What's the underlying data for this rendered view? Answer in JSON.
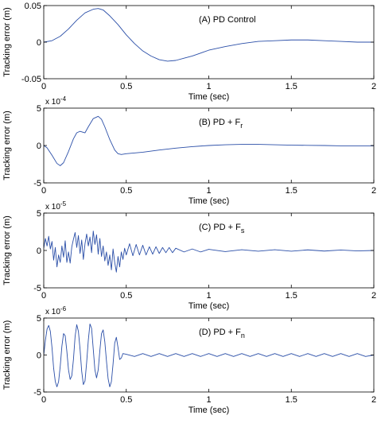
{
  "chart_data": [
    {
      "type": "line",
      "panel": "A",
      "title": "(A)  PD Control",
      "xlabel": "Time (sec)",
      "ylabel": "Tracking error (m)",
      "exponent": "",
      "xlim": [
        0,
        2
      ],
      "ylim": [
        -0.05,
        0.05
      ],
      "xticks": [
        0,
        0.5,
        1,
        1.5,
        2
      ],
      "xtick_labels": [
        "0",
        "0.5",
        "1",
        "1.5",
        "2"
      ],
      "yticks": [
        -0.05,
        0,
        0.05
      ],
      "ytick_labels": [
        "-0.05",
        "0",
        "0.05"
      ],
      "grid": false,
      "color": "#2b4fa8",
      "series": [
        {
          "x": [
            0,
            0.05,
            0.1,
            0.15,
            0.2,
            0.25,
            0.3,
            0.33,
            0.36,
            0.4,
            0.45,
            0.5,
            0.55,
            0.6,
            0.65,
            0.7,
            0.75,
            0.8,
            0.85,
            0.9,
            0.95,
            1.0,
            1.1,
            1.2,
            1.3,
            1.4,
            1.5,
            1.6,
            1.7,
            1.8,
            1.9,
            2.0
          ],
          "y": [
            0,
            0.002,
            0.008,
            0.018,
            0.03,
            0.04,
            0.045,
            0.046,
            0.044,
            0.036,
            0.024,
            0.01,
            -0.002,
            -0.012,
            -0.019,
            -0.024,
            -0.026,
            -0.025,
            -0.022,
            -0.019,
            -0.015,
            -0.011,
            -0.006,
            -0.002,
            0.001,
            0.002,
            0.003,
            0.003,
            0.002,
            0.001,
            0,
            0
          ]
        }
      ]
    },
    {
      "type": "line",
      "panel": "B",
      "title": "(B)  PD + F",
      "title_sub": "r",
      "xlabel": "Time (sec)",
      "ylabel": "Tracking error (m)",
      "exponent": "x 10",
      "exponent_power": "-4",
      "xlim": [
        0,
        2
      ],
      "ylim": [
        -5,
        5
      ],
      "xticks": [
        0,
        0.5,
        1,
        1.5,
        2
      ],
      "xtick_labels": [
        "0",
        "0.5",
        "1",
        "1.5",
        "2"
      ],
      "yticks": [
        -5,
        0,
        5
      ],
      "ytick_labels": [
        "-5",
        "0",
        "5"
      ],
      "grid": false,
      "color": "#2b4fa8",
      "series": [
        {
          "x": [
            0,
            0.02,
            0.05,
            0.08,
            0.1,
            0.12,
            0.15,
            0.18,
            0.2,
            0.22,
            0.25,
            0.27,
            0.3,
            0.33,
            0.35,
            0.37,
            0.4,
            0.43,
            0.45,
            0.47,
            0.5,
            0.6,
            0.7,
            0.8,
            0.9,
            1.0,
            1.1,
            1.2,
            1.3,
            1.4,
            1.5,
            1.6,
            1.7,
            1.8,
            1.9,
            2.0
          ],
          "y": [
            0,
            -0.3,
            -1.3,
            -2.4,
            -2.7,
            -2.3,
            -0.8,
            0.9,
            1.7,
            1.9,
            1.7,
            2.5,
            3.6,
            3.9,
            3.5,
            2.5,
            0.8,
            -0.6,
            -1.1,
            -1.2,
            -1.1,
            -0.9,
            -0.6,
            -0.35,
            -0.15,
            0,
            0.1,
            0.15,
            0.15,
            0.1,
            0.05,
            0.02,
            0,
            -0.05,
            -0.05,
            -0.05
          ]
        }
      ]
    },
    {
      "type": "line",
      "panel": "C",
      "title": "(C)  PD + F",
      "title_sub": "s",
      "xlabel": "Time (sec)",
      "ylabel": "Tracking error (m)",
      "exponent": "x 10",
      "exponent_power": "-5",
      "xlim": [
        0,
        2
      ],
      "ylim": [
        -5,
        5
      ],
      "xticks": [
        0,
        0.5,
        1,
        1.5,
        2
      ],
      "xtick_labels": [
        "0",
        "0.5",
        "1",
        "1.5",
        "2"
      ],
      "yticks": [
        -5,
        0,
        5
      ],
      "ytick_labels": [
        "-5",
        "0",
        "5"
      ],
      "grid": false,
      "color": "#2b4fa8",
      "series": [
        {
          "x": [
            0,
            0.01,
            0.02,
            0.03,
            0.04,
            0.05,
            0.06,
            0.07,
            0.08,
            0.09,
            0.1,
            0.11,
            0.12,
            0.13,
            0.14,
            0.15,
            0.16,
            0.17,
            0.18,
            0.19,
            0.2,
            0.21,
            0.22,
            0.23,
            0.24,
            0.25,
            0.26,
            0.27,
            0.28,
            0.29,
            0.3,
            0.31,
            0.32,
            0.33,
            0.34,
            0.35,
            0.36,
            0.37,
            0.38,
            0.39,
            0.4,
            0.41,
            0.42,
            0.43,
            0.44,
            0.45,
            0.46,
            0.47,
            0.48,
            0.49,
            0.5,
            0.52,
            0.54,
            0.56,
            0.58,
            0.6,
            0.62,
            0.64,
            0.66,
            0.68,
            0.7,
            0.72,
            0.74,
            0.76,
            0.78,
            0.8,
            0.85,
            0.9,
            0.95,
            1.0,
            1.1,
            1.2,
            1.3,
            1.4,
            1.5,
            1.6,
            1.7,
            1.8,
            1.9,
            2.0
          ],
          "y": [
            0.3,
            1.6,
            0.6,
            1.9,
            0.2,
            1.2,
            -1.3,
            0.4,
            -2.2,
            -0.6,
            -1.6,
            0.6,
            -0.9,
            1.3,
            -1.6,
            -0.2,
            -1.7,
            0.5,
            1.5,
            2.4,
            0.4,
            2.0,
            -0.4,
            1.4,
            -1.2,
            0.9,
            2.2,
            0.6,
            1.8,
            -0.3,
            2.6,
            0.8,
            2.1,
            -0.5,
            1.6,
            -0.8,
            0.6,
            -1.4,
            -0.2,
            -2.0,
            -0.6,
            -2.6,
            0.2,
            -1.6,
            -2.9,
            -0.8,
            -2.2,
            -0.2,
            -1.2,
            0.3,
            -0.6,
            0.9,
            -0.7,
            0.8,
            -0.6,
            0.7,
            -0.6,
            0.5,
            -0.5,
            0.5,
            -0.4,
            0.4,
            -0.3,
            0.4,
            -0.3,
            0.3,
            -0.2,
            0.2,
            -0.2,
            0.15,
            -0.15,
            0.1,
            -0.1,
            0.1,
            -0.1,
            0.08,
            -0.08,
            0.06,
            -0.06,
            0
          ]
        }
      ]
    },
    {
      "type": "line",
      "panel": "D",
      "title": "(D)  PD + F",
      "title_sub": "n",
      "xlabel": "Time (sec)",
      "ylabel": "Tracking error (m)",
      "exponent": "x 10",
      "exponent_power": "-6",
      "xlim": [
        0,
        2
      ],
      "ylim": [
        -5,
        5
      ],
      "xticks": [
        0,
        0.5,
        1,
        1.5,
        2
      ],
      "xtick_labels": [
        "0",
        "0.5",
        "1",
        "1.5",
        "2"
      ],
      "yticks": [
        -5,
        0,
        5
      ],
      "ytick_labels": [
        "-5",
        "0",
        "5"
      ],
      "grid": false,
      "color": "#2b4fa8",
      "series": [
        {
          "x": [
            0,
            0.01,
            0.02,
            0.03,
            0.04,
            0.05,
            0.06,
            0.07,
            0.08,
            0.09,
            0.1,
            0.11,
            0.12,
            0.13,
            0.14,
            0.15,
            0.16,
            0.17,
            0.18,
            0.19,
            0.2,
            0.21,
            0.22,
            0.23,
            0.24,
            0.25,
            0.26,
            0.27,
            0.28,
            0.29,
            0.3,
            0.31,
            0.32,
            0.33,
            0.34,
            0.35,
            0.36,
            0.37,
            0.38,
            0.39,
            0.4,
            0.41,
            0.42,
            0.43,
            0.44,
            0.45,
            0.46,
            0.47,
            0.48,
            0.5,
            0.55,
            0.6,
            0.65,
            0.7,
            0.75,
            0.8,
            0.85,
            0.9,
            0.95,
            1.0,
            1.05,
            1.1,
            1.15,
            1.2,
            1.25,
            1.3,
            1.35,
            1.4,
            1.45,
            1.5,
            1.55,
            1.6,
            1.65,
            1.7,
            1.75,
            1.8,
            1.85,
            1.9,
            1.95,
            2.0
          ],
          "y": [
            0,
            2.0,
            3.5,
            4.0,
            3.2,
            1.0,
            -1.8,
            -3.6,
            -4.3,
            -3.6,
            -1.5,
            1.2,
            2.9,
            2.6,
            0.5,
            -2.0,
            -3.3,
            -2.8,
            -0.6,
            2.5,
            4.1,
            3.2,
            0.8,
            -2.2,
            -4.0,
            -3.5,
            -1.0,
            2.0,
            4.2,
            3.6,
            0.8,
            -2.0,
            -3.1,
            -2.0,
            0.6,
            2.9,
            3.4,
            1.8,
            -0.8,
            -3.2,
            -4.3,
            -3.6,
            -1.2,
            1.6,
            2.4,
            1.0,
            -0.6,
            -0.4,
            0.2,
            0.1,
            -0.2,
            0.2,
            -0.2,
            0.2,
            -0.2,
            0.2,
            -0.2,
            0.2,
            -0.2,
            0.2,
            -0.2,
            0.2,
            -0.2,
            0.2,
            -0.2,
            0.2,
            -0.2,
            0.2,
            -0.2,
            0.2,
            -0.2,
            0.2,
            -0.2,
            0.2,
            -0.2,
            0.2,
            -0.2,
            0.2,
            -0.2,
            0
          ]
        }
      ]
    }
  ]
}
